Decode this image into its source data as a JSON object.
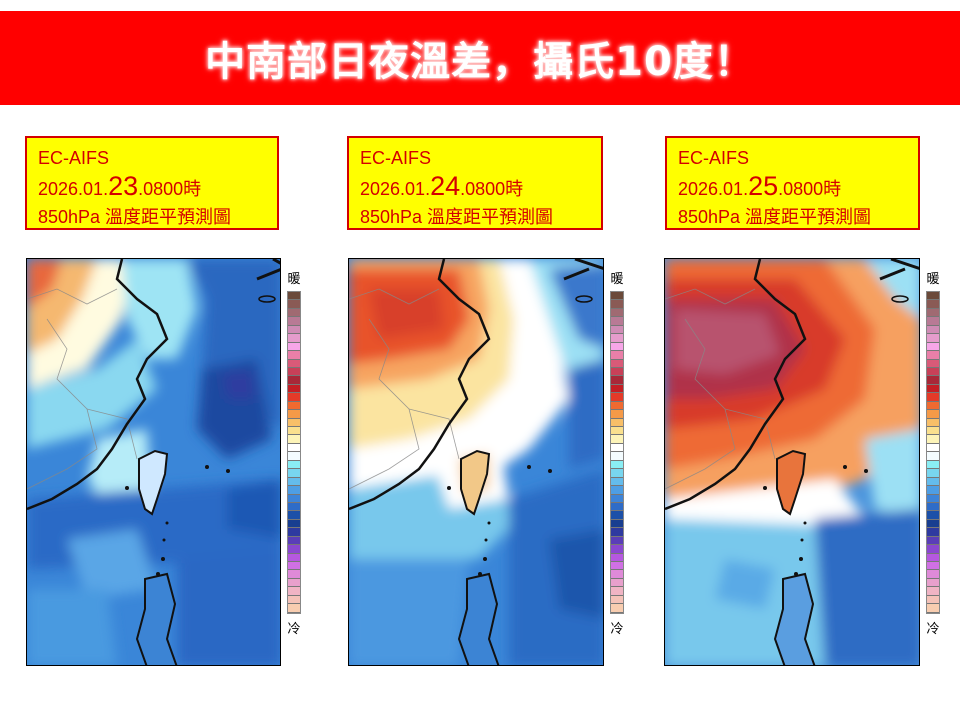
{
  "banner": {
    "title": "中南部日夜溫差，攝氏10度！",
    "background": "#ff0000",
    "text_color": "#ffffff"
  },
  "panels": [
    {
      "model": "EC-AIFS",
      "date_prefix": "2026.01.",
      "date_day": "23",
      "date_suffix": ".0800時",
      "subtitle": "850hPa 溫度距平預測圖",
      "map_description": "cold anomaly (blue) over Taiwan and ocean; warm (orange) only in northwest corner"
    },
    {
      "model": "EC-AIFS",
      "date_prefix": "2026.01.",
      "date_day": "24",
      "date_suffix": ".0800時",
      "subtitle": "850hPa 溫度距平預測圖",
      "map_description": "warm anomaly (red/orange) over eastern China, white transition band, blue to the south and east"
    },
    {
      "model": "EC-AIFS",
      "date_prefix": "2026.01.",
      "date_day": "25",
      "date_suffix": ".0800時",
      "subtitle": "850hPa 溫度距平預測圖",
      "map_description": "strong warm anomaly (dark red/maroon) over eastern China, orange over Taiwan, blue to the south"
    }
  ],
  "colorbar": {
    "warm_label": "暖",
    "cold_label": "冷",
    "colors": [
      "#6b4a3a",
      "#8a5a55",
      "#a06a72",
      "#b87a95",
      "#cf8cb5",
      "#e59ccc",
      "#f7a6e8",
      "#ea7fa8",
      "#d95a78",
      "#c84058",
      "#a82838",
      "#c41e24",
      "#e43a28",
      "#f06a30",
      "#f59a48",
      "#f8bf68",
      "#fae08e",
      "#fdf4b8",
      "#ffffff",
      "#f4fcff",
      "#8aeef4",
      "#78d6ef",
      "#64bcec",
      "#4e9ee4",
      "#3e84d8",
      "#2e6cc8",
      "#1c50a8",
      "#183e90",
      "#2e3aa0",
      "#5a3eb8",
      "#8a48d0",
      "#b658e0",
      "#d070e4",
      "#df8ad8",
      "#e8a0cc",
      "#f0b4c4",
      "#f4c2b8",
      "#f8cdb0"
    ]
  }
}
